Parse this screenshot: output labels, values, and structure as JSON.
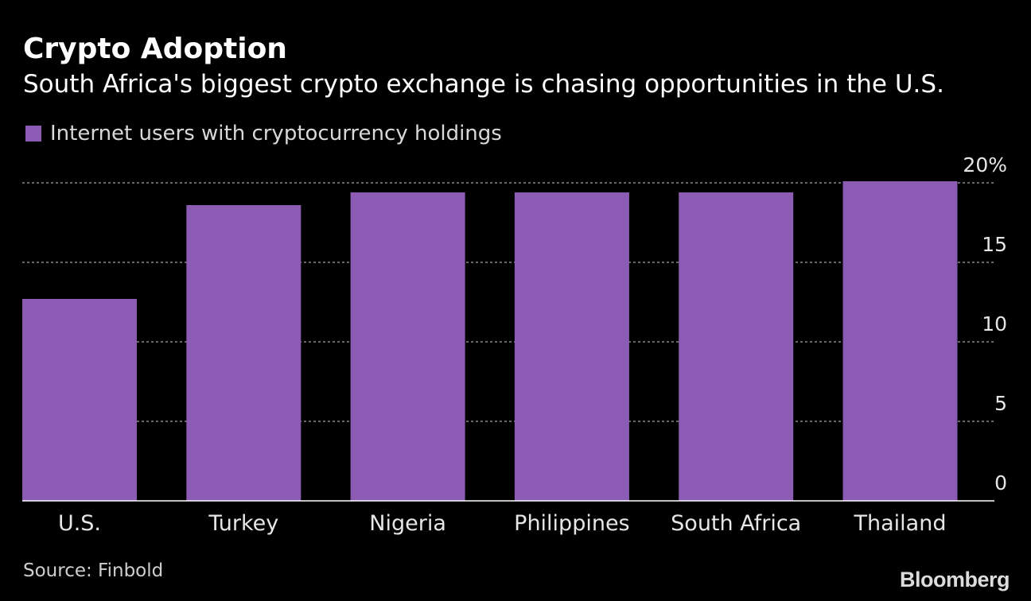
{
  "header": {
    "title": "Crypto Adoption",
    "subtitle": "South Africa's biggest crypto exchange is chasing opportunities in the U.S."
  },
  "footer": {
    "source": "Source: Finbold",
    "brand": "Bloomberg"
  },
  "colors": {
    "background": "#000000",
    "bar": "#8c5cb5",
    "grid": "#8a8a8a",
    "axis": "#ffffff",
    "text": "#ffffff"
  },
  "chart_data": {
    "type": "bar",
    "categories": [
      "U.S.",
      "Turkey",
      "Nigeria",
      "Philippines",
      "South Africa",
      "Thailand"
    ],
    "series": [
      {
        "name": "Internet users with cryptocurrency holdings",
        "values": [
          12.7,
          18.6,
          19.4,
          19.4,
          19.4,
          20.1
        ]
      }
    ],
    "ylim": [
      0,
      20
    ],
    "y_ticks": [
      0,
      5,
      10,
      15,
      20
    ],
    "y_tick_labels": [
      "0",
      "5",
      "10",
      "15",
      "20%"
    ],
    "xlabel": "",
    "ylabel": "",
    "y_axis_side": "right",
    "grid": "horizontal dotted",
    "legend": "top-left"
  }
}
